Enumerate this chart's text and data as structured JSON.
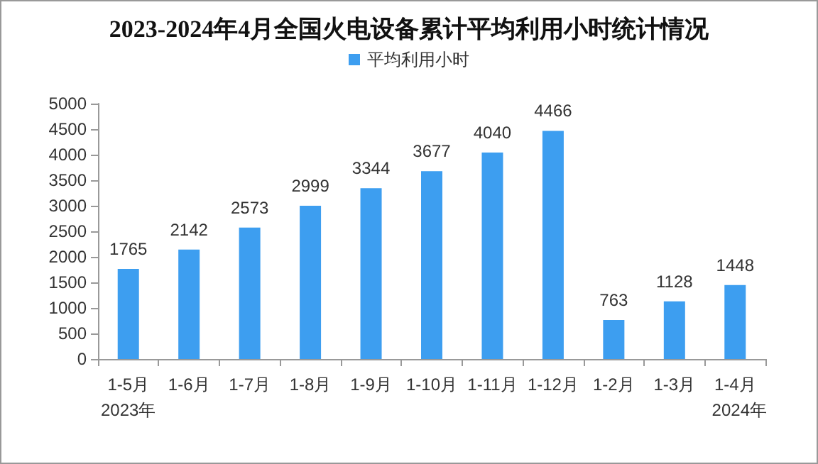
{
  "chart_data": {
    "type": "bar",
    "title": "2023-2024年4月全国火电设备累计平均利用小时统计情况",
    "categories": [
      "1-5月",
      "1-6月",
      "1-7月",
      "1-8月",
      "1-9月",
      "1-10月",
      "1-11月",
      "1-12月",
      "1-2月",
      "1-3月",
      "1-4月"
    ],
    "series": [
      {
        "name": "平均利用小时",
        "color": "#3d9ef0",
        "values": [
          1765,
          2142,
          2573,
          2999,
          3344,
          3677,
          4040,
          4466,
          763,
          1128,
          1448
        ]
      }
    ],
    "ylim": [
      0,
      5000
    ],
    "yticks": [
      0,
      500,
      1000,
      1500,
      2000,
      2500,
      3000,
      3500,
      4000,
      4500,
      5000
    ],
    "grid": false,
    "legend": "top",
    "data_labels": true,
    "annotations": [
      "2023年",
      "2024年"
    ]
  }
}
